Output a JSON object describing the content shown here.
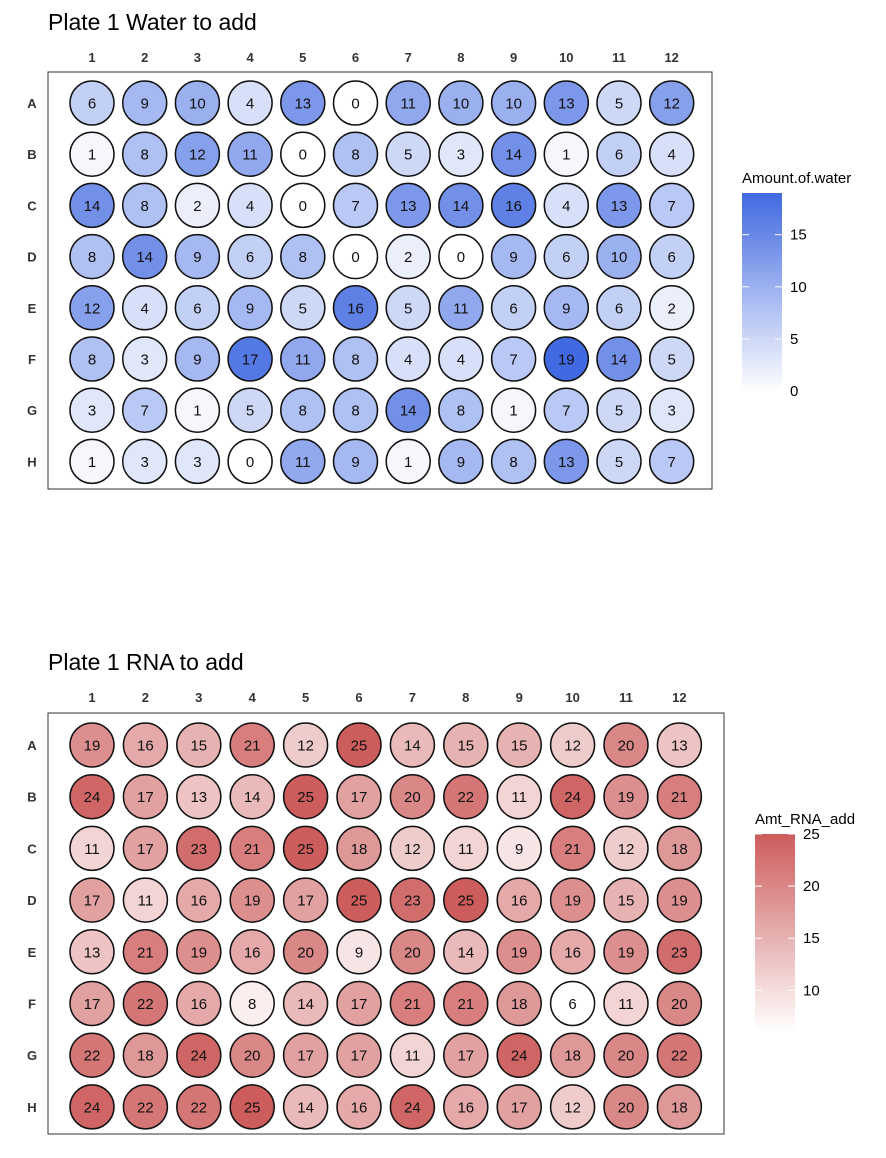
{
  "chart_data": [
    {
      "type": "heatmap",
      "title": "Plate 1 Water to add",
      "columns": [
        "1",
        "2",
        "3",
        "4",
        "5",
        "6",
        "7",
        "8",
        "9",
        "10",
        "11",
        "12"
      ],
      "rows": [
        "A",
        "B",
        "C",
        "D",
        "E",
        "F",
        "G",
        "H"
      ],
      "values": [
        [
          6,
          9,
          10,
          4,
          13,
          0,
          11,
          10,
          10,
          13,
          5,
          12
        ],
        [
          1,
          8,
          12,
          11,
          0,
          8,
          5,
          3,
          14,
          1,
          6,
          4
        ],
        [
          14,
          8,
          2,
          4,
          0,
          7,
          13,
          14,
          16,
          4,
          13,
          7
        ],
        [
          8,
          14,
          9,
          6,
          8,
          0,
          2,
          0,
          9,
          6,
          10,
          6
        ],
        [
          12,
          4,
          6,
          9,
          5,
          16,
          5,
          11,
          6,
          9,
          6,
          2
        ],
        [
          8,
          3,
          9,
          17,
          11,
          8,
          4,
          4,
          7,
          19,
          14,
          5
        ],
        [
          3,
          7,
          1,
          5,
          8,
          8,
          14,
          8,
          1,
          7,
          5,
          3
        ],
        [
          1,
          3,
          3,
          0,
          11,
          9,
          1,
          9,
          8,
          13,
          5,
          7
        ]
      ],
      "legend": {
        "title": "Amount.of.water",
        "ticks": [
          "0",
          "5",
          "10",
          "15"
        ],
        "tick_values": [
          0,
          5,
          10,
          15
        ],
        "range": [
          0,
          19
        ],
        "color_low": "#ffffff",
        "color_high": "#4169e1"
      }
    },
    {
      "type": "heatmap",
      "title": "Plate 1 RNA to add",
      "columns": [
        "1",
        "2",
        "3",
        "4",
        "5",
        "6",
        "7",
        "8",
        "9",
        "10",
        "11",
        "12"
      ],
      "rows": [
        "A",
        "B",
        "C",
        "D",
        "E",
        "F",
        "G",
        "H"
      ],
      "values": [
        [
          19,
          16,
          15,
          21,
          12,
          25,
          14,
          15,
          15,
          12,
          20,
          13
        ],
        [
          24,
          17,
          13,
          14,
          25,
          17,
          20,
          22,
          11,
          24,
          19,
          21
        ],
        [
          11,
          17,
          23,
          21,
          25,
          18,
          12,
          11,
          9,
          21,
          12,
          18
        ],
        [
          17,
          11,
          16,
          19,
          17,
          25,
          23,
          25,
          16,
          19,
          15,
          19
        ],
        [
          13,
          21,
          19,
          16,
          20,
          9,
          20,
          14,
          19,
          16,
          19,
          23
        ],
        [
          17,
          22,
          16,
          8,
          14,
          17,
          21,
          21,
          18,
          6,
          11,
          20
        ],
        [
          22,
          18,
          24,
          20,
          17,
          17,
          11,
          17,
          24,
          18,
          20,
          22
        ],
        [
          24,
          22,
          22,
          25,
          14,
          16,
          24,
          16,
          17,
          12,
          20,
          18
        ]
      ],
      "legend": {
        "title": "Amt_RNA_add",
        "ticks": [
          "10",
          "15",
          "20",
          "25"
        ],
        "tick_values": [
          10,
          15,
          20,
          25
        ],
        "range": [
          6,
          25
        ],
        "color_low": "#ffffff",
        "color_high": "#cd5c5c"
      }
    }
  ]
}
